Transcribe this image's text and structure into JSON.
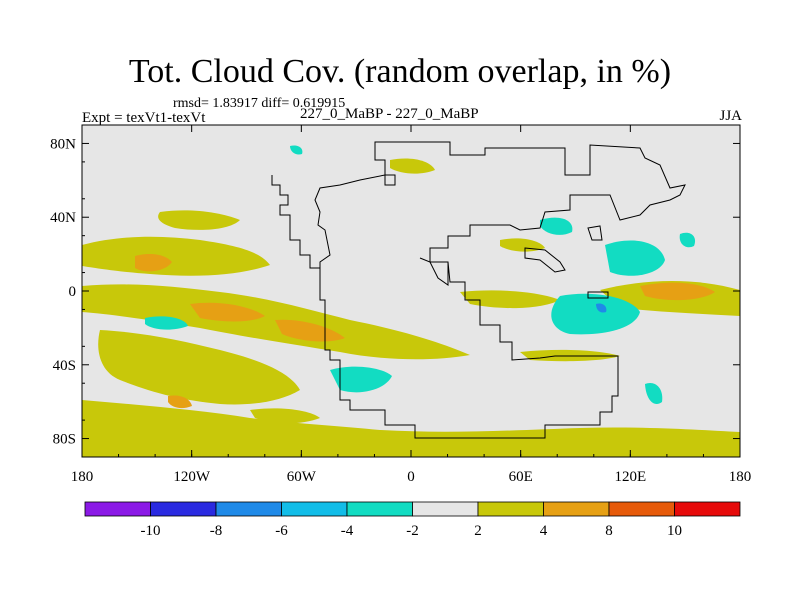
{
  "chart_data": {
    "type": "heatmap",
    "title": "Tot. Cloud Cov. (random overlap, in %)",
    "stats": "rmsd= 1.83917 diff= 0.619915",
    "left_label": "Expt = texVt1-texVt",
    "center_label": "227_0_MaBP - 227_0_MaBP",
    "right_label": "JJA",
    "x_ticks": [
      "180",
      "120W",
      "60W",
      "0",
      "60E",
      "120E",
      "180"
    ],
    "x_tick_values": [
      -180,
      -120,
      -60,
      0,
      60,
      120,
      180
    ],
    "y_ticks": [
      "80N",
      "40N",
      "0",
      "40S",
      "80S"
    ],
    "y_tick_values": [
      80,
      40,
      0,
      -40,
      -80
    ],
    "xlim": [
      -180,
      180
    ],
    "ylim": [
      -90,
      90
    ],
    "colorbar": {
      "labels": [
        "-10",
        "-8",
        "-6",
        "-4",
        "-2",
        "2",
        "4",
        "8",
        "10"
      ],
      "colors": [
        "#8b1ae6",
        "#2a2ae0",
        "#1f8ae8",
        "#12bde8",
        "#12dcc2",
        "#e6e6e6",
        "#c8c80a",
        "#e6a014",
        "#e65a0a",
        "#e60a0a"
      ]
    },
    "colors": {
      "neutral": "#e6e6e6",
      "yellow": "#c8c80a",
      "orange": "#e6a014",
      "cyan": "#12dcc2",
      "blue": "#12bde8"
    }
  }
}
